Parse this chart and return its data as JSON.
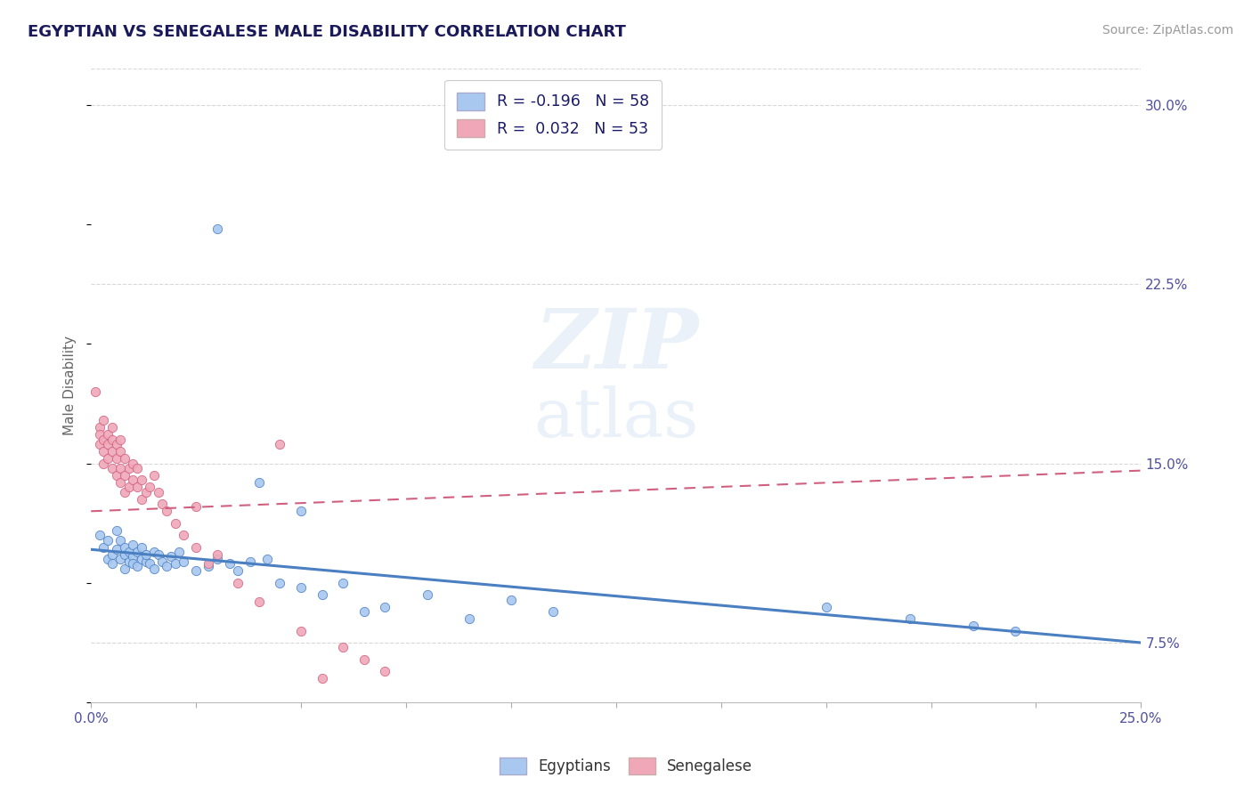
{
  "title": "EGYPTIAN VS SENEGALESE MALE DISABILITY CORRELATION CHART",
  "source": "Source: ZipAtlas.com",
  "ylabel": "Male Disability",
  "xlim": [
    0.0,
    0.25
  ],
  "ylim": [
    0.05,
    0.315
  ],
  "color_egyptian": "#a8c8f0",
  "color_senegalese": "#f0a8b8",
  "color_trend_egyptian": "#4a7fc1",
  "color_trend_senegalese": "#d06080",
  "background_color": "#ffffff",
  "grid_color": "#d8d8d8",
  "ytick_positions": [
    0.075,
    0.15,
    0.225,
    0.3
  ],
  "ytick_labels": [
    "7.5%",
    "15.0%",
    "22.5%",
    "30.0%"
  ],
  "egyptian_x": [
    0.002,
    0.003,
    0.004,
    0.004,
    0.005,
    0.005,
    0.006,
    0.006,
    0.007,
    0.007,
    0.008,
    0.008,
    0.008,
    0.009,
    0.009,
    0.01,
    0.01,
    0.01,
    0.011,
    0.011,
    0.012,
    0.012,
    0.013,
    0.013,
    0.014,
    0.015,
    0.015,
    0.016,
    0.017,
    0.018,
    0.019,
    0.02,
    0.021,
    0.022,
    0.025,
    0.028,
    0.03,
    0.033,
    0.035,
    0.038,
    0.042,
    0.045,
    0.05,
    0.055,
    0.06,
    0.065,
    0.07,
    0.08,
    0.09,
    0.1,
    0.03,
    0.04,
    0.05,
    0.11,
    0.175,
    0.195,
    0.21,
    0.22
  ],
  "egyptian_y": [
    0.12,
    0.115,
    0.11,
    0.118,
    0.112,
    0.108,
    0.122,
    0.114,
    0.118,
    0.11,
    0.112,
    0.106,
    0.115,
    0.109,
    0.113,
    0.111,
    0.108,
    0.116,
    0.113,
    0.107,
    0.11,
    0.115,
    0.109,
    0.112,
    0.108,
    0.113,
    0.106,
    0.112,
    0.109,
    0.107,
    0.111,
    0.108,
    0.113,
    0.109,
    0.105,
    0.107,
    0.11,
    0.108,
    0.105,
    0.109,
    0.11,
    0.1,
    0.098,
    0.095,
    0.1,
    0.088,
    0.09,
    0.095,
    0.085,
    0.093,
    0.248,
    0.142,
    0.13,
    0.088,
    0.09,
    0.085,
    0.082,
    0.08
  ],
  "senegalese_x": [
    0.001,
    0.002,
    0.002,
    0.002,
    0.003,
    0.003,
    0.003,
    0.003,
    0.004,
    0.004,
    0.004,
    0.005,
    0.005,
    0.005,
    0.005,
    0.006,
    0.006,
    0.006,
    0.007,
    0.007,
    0.007,
    0.007,
    0.008,
    0.008,
    0.008,
    0.009,
    0.009,
    0.01,
    0.01,
    0.011,
    0.011,
    0.012,
    0.012,
    0.013,
    0.014,
    0.015,
    0.016,
    0.017,
    0.018,
    0.02,
    0.022,
    0.025,
    0.028,
    0.03,
    0.035,
    0.04,
    0.05,
    0.06,
    0.065,
    0.07,
    0.025,
    0.045,
    0.055
  ],
  "senegalese_y": [
    0.18,
    0.165,
    0.162,
    0.158,
    0.168,
    0.16,
    0.155,
    0.15,
    0.162,
    0.158,
    0.152,
    0.165,
    0.16,
    0.155,
    0.148,
    0.158,
    0.152,
    0.145,
    0.16,
    0.155,
    0.148,
    0.142,
    0.152,
    0.145,
    0.138,
    0.148,
    0.14,
    0.15,
    0.143,
    0.148,
    0.14,
    0.143,
    0.135,
    0.138,
    0.14,
    0.145,
    0.138,
    0.133,
    0.13,
    0.125,
    0.12,
    0.115,
    0.108,
    0.112,
    0.1,
    0.092,
    0.08,
    0.073,
    0.068,
    0.063,
    0.132,
    0.158,
    0.06
  ]
}
